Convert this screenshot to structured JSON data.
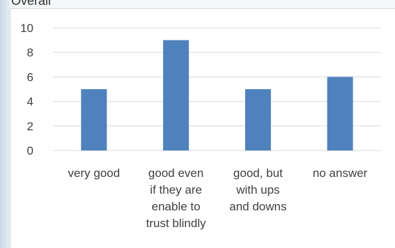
{
  "partial_heading": "Overall",
  "chart_data": {
    "type": "bar",
    "title": "",
    "xlabel": "",
    "ylabel": "",
    "categories": [
      [
        "very good"
      ],
      [
        "good even",
        "if they are",
        "enable to",
        "trust blindly"
      ],
      [
        "good, but",
        "with ups",
        "and downs"
      ],
      [
        "no answer"
      ]
    ],
    "series": [
      {
        "values": [
          5,
          9,
          5,
          6
        ]
      }
    ],
    "ylim": [
      0,
      10
    ],
    "yticks": [
      0,
      2,
      4,
      6,
      8,
      10
    ],
    "grid": true,
    "legend": "none",
    "bar_color": "#4f81bd",
    "grid_color": "#d9d9d9",
    "text_color": "#404040"
  }
}
